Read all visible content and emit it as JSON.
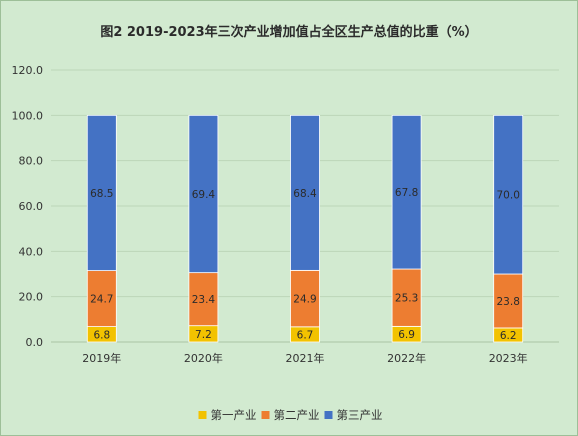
{
  "chart_data": {
    "type": "bar",
    "stacked": true,
    "title": "图2 2019-2023年三次产业增加值占全区生产总值的比重（%）",
    "categories": [
      "2019年",
      "2020年",
      "2021年",
      "2022年",
      "2023年"
    ],
    "series": [
      {
        "name": "第一产业",
        "color": "#f2c200",
        "values": [
          6.8,
          7.2,
          6.7,
          6.9,
          6.2
        ],
        "labels": [
          "6.8",
          "7.2",
          "6.7",
          "6.9",
          "6.2"
        ]
      },
      {
        "name": "第二产业",
        "color": "#ed7d31",
        "values": [
          24.7,
          23.4,
          24.9,
          25.3,
          23.8
        ],
        "labels": [
          "24.7",
          "23.4",
          "24.9",
          "25.3",
          "23.8"
        ]
      },
      {
        "name": "第三产业",
        "color": "#4472c4",
        "values": [
          68.5,
          69.4,
          68.4,
          67.8,
          70.0
        ],
        "labels": [
          "68.5",
          "69.4",
          "68.4",
          "67.8",
          "70.0"
        ]
      }
    ],
    "ylim": [
      0,
      120
    ],
    "yticks": [
      "0.0",
      "20.0",
      "40.0",
      "60.0",
      "80.0",
      "100.0",
      "120.0"
    ],
    "grid": true,
    "legend_position": "bottom"
  }
}
